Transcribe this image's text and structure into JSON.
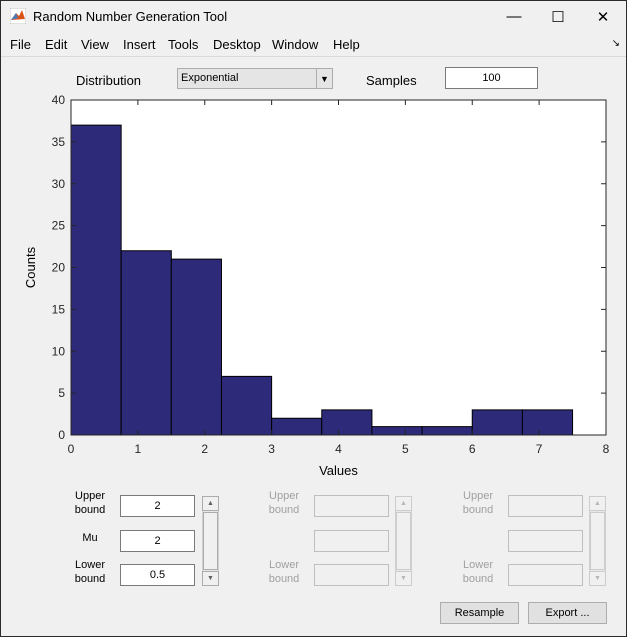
{
  "window": {
    "title": "Random Number Generation Tool",
    "minimize": "—",
    "maximize": "☐",
    "close": "✕"
  },
  "menu": [
    "File",
    "Edit",
    "View",
    "Insert",
    "Tools",
    "Desktop",
    "Window",
    "Help"
  ],
  "controls": {
    "distribution_label": "Distribution",
    "distribution_value": "Exponential",
    "samples_label": "Samples",
    "samples_value": "100"
  },
  "chart_data": {
    "type": "bar",
    "xlabel": "Values",
    "ylabel": "Counts",
    "xlim": [
      0,
      8
    ],
    "ylim": [
      0,
      40
    ],
    "xticks": [
      0,
      1,
      2,
      3,
      4,
      5,
      6,
      7,
      8
    ],
    "yticks": [
      0,
      5,
      10,
      15,
      20,
      25,
      30,
      35,
      40
    ],
    "bin_edges": [
      0,
      0.75,
      1.5,
      2.25,
      3.0,
      3.75,
      4.5,
      5.25,
      6.0,
      6.75,
      7.5
    ],
    "values": [
      37,
      22,
      21,
      7,
      2,
      3,
      1,
      1,
      3,
      3
    ],
    "bar_color": "#2e2a7a"
  },
  "params": [
    {
      "upper_label": "Upper\nbound",
      "upper_value": "2",
      "mid_label": "Mu",
      "mid_value": "2",
      "lower_label": "Lower\nbound",
      "lower_value": "0.5"
    },
    {
      "upper_label": "Upper\nbound",
      "upper_value": "",
      "mid_label": "",
      "mid_value": "",
      "lower_label": "Lower\nbound",
      "lower_value": ""
    },
    {
      "upper_label": "Upper\nbound",
      "upper_value": "",
      "mid_label": "",
      "mid_value": "",
      "lower_label": "Lower\nbound",
      "lower_value": ""
    }
  ],
  "buttons": {
    "resample": "Resample",
    "export": "Export ..."
  }
}
